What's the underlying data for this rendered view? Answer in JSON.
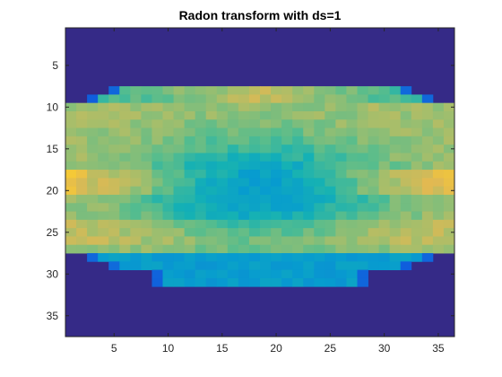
{
  "chart_data": {
    "type": "heatmap",
    "title": "Radon transform with ds=1",
    "xlabel": "",
    "ylabel": "",
    "x_range": [
      0.5,
      36.5
    ],
    "y_range": [
      0.5,
      37.5
    ],
    "y_reversed": true,
    "x_ticks": [
      5,
      10,
      15,
      20,
      25,
      30,
      35
    ],
    "y_ticks": [
      5,
      10,
      15,
      20,
      25,
      30,
      35
    ],
    "grid": false,
    "colormap": "parula",
    "colors": {
      "background_low": "#352a87",
      "edge_blue": "#0f5cdd",
      "cyan": "#12a8d0",
      "teal": "#2fb9a8",
      "green": "#7ebf7a",
      "yellow": "#f8d13a",
      "bright_yellow": "#f9fb0e"
    },
    "n_cols": 36,
    "n_rows": 37,
    "value_range": [
      0,
      1
    ],
    "support_rows": {
      "8": [
        5,
        32
      ],
      "9": [
        3,
        34
      ],
      "10": [
        1,
        36
      ],
      "11_to_27": [
        1,
        36
      ],
      "28": [
        3,
        34
      ],
      "29": [
        5,
        32
      ],
      "30": [
        9,
        28
      ],
      "31": [
        9,
        28
      ]
    },
    "summary": "Outside the sinogram support values are 0 (dark blue). Inside, values range ~0.4-0.95: bright yellow bands near rows 8, 18-20 (edges) and cyan/teal center region around rows 20-31."
  }
}
